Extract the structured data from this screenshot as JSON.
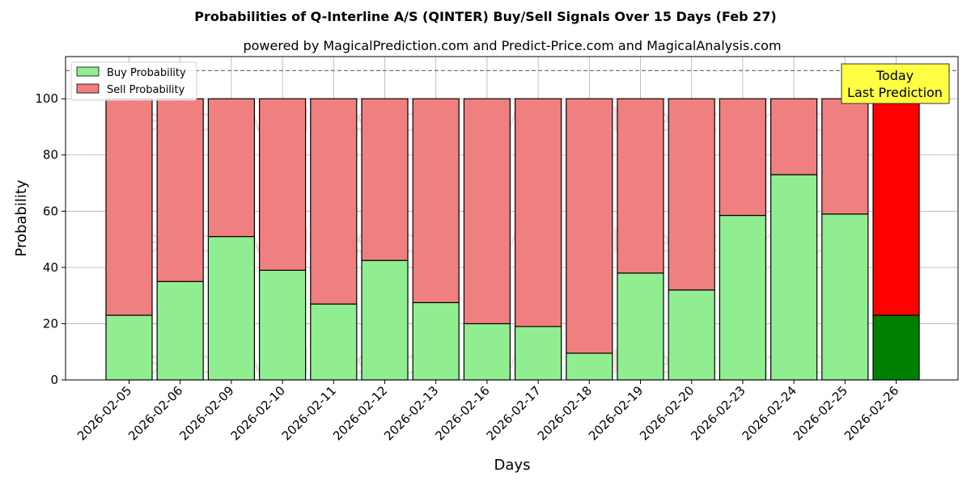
{
  "chart_data": {
    "type": "bar",
    "stacked": true,
    "title": "Probabilities of Q-Interline A/S (QINTER) Buy/Sell Signals Over 15 Days (Feb 27)",
    "subtitle": "powered by MagicalPrediction.com and Predict-Price.com and MagicalAnalysis.com",
    "xlabel": "Days",
    "ylabel": "Probability",
    "ylim": [
      0,
      115
    ],
    "yticks": [
      0,
      20,
      40,
      60,
      80,
      100
    ],
    "reference_line": 110,
    "grid": true,
    "legend_position": "top-left",
    "categories": [
      "2026-02-05",
      "2026-02-06",
      "2026-02-09",
      "2026-02-10",
      "2026-02-11",
      "2026-02-12",
      "2026-02-13",
      "2026-02-16",
      "2026-02-17",
      "2026-02-18",
      "2026-02-19",
      "2026-02-20",
      "2026-02-23",
      "2026-02-24",
      "2026-02-25",
      "2026-02-26"
    ],
    "series": [
      {
        "name": "Buy Probability",
        "color": "#90ee90",
        "highlight_color": "#008000",
        "values": [
          23,
          35,
          51,
          39,
          27,
          42.5,
          27.5,
          20,
          19,
          9.5,
          38,
          32,
          58.5,
          73,
          59,
          23
        ]
      },
      {
        "name": "Sell Probability",
        "color": "#f08080",
        "highlight_color": "#ff0000",
        "values": [
          77,
          65,
          49,
          61,
          73,
          57.5,
          72.5,
          80,
          81,
          90.5,
          62,
          68,
          41.5,
          27,
          41,
          77
        ]
      }
    ],
    "highlight_index": 15,
    "annotation": {
      "line1": "Today",
      "line2": "Last Prediction",
      "color": "#ffff44"
    },
    "watermarks": [
      "MagicalAnalysis.com",
      "MagicalPrediction.com"
    ]
  }
}
